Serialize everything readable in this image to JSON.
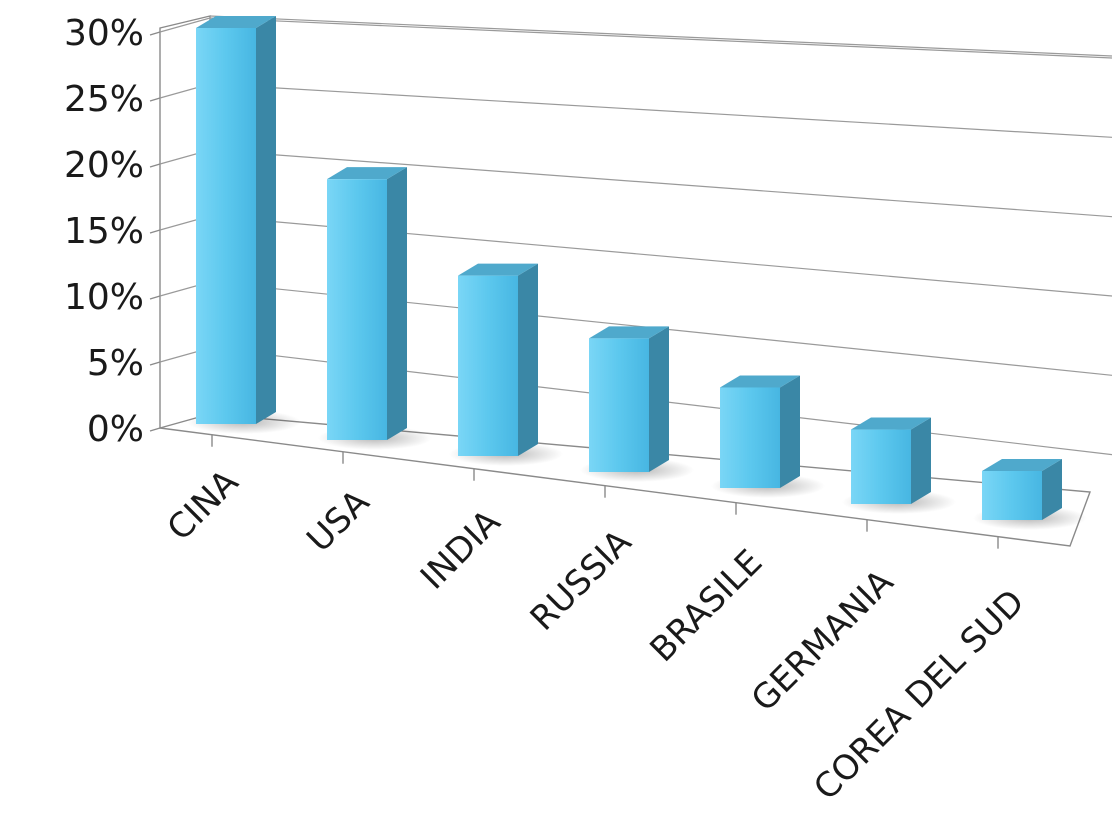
{
  "chart_data": {
    "type": "bar",
    "title": "",
    "xlabel": "",
    "ylabel": "",
    "categories": [
      "CINA",
      "USA",
      "INDIA",
      "RUSSIA",
      "BRASILE",
      "GERMANIA",
      "COREA DEL SUD"
    ],
    "values": [
      30,
      20,
      14,
      10.5,
      8,
      6,
      4
    ],
    "value_format": "percent",
    "ylim": [
      0,
      30
    ],
    "yticks": [
      "0%",
      "5%",
      "10%",
      "15%",
      "20%",
      "25%",
      "30%"
    ],
    "grid": true,
    "legend": "none",
    "style": "3d-column",
    "colors": {
      "bar_front": "#5cc8ee",
      "bar_side": "#3a87a6",
      "bar_top": "#4fa9cc",
      "grid": "#9a9a9a"
    }
  }
}
